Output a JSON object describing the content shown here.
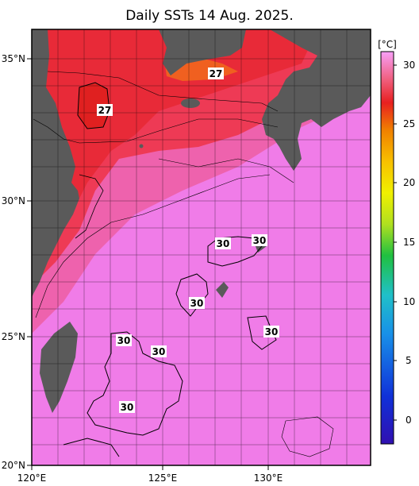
{
  "title": "Daily SSTs 14 Aug. 2025.",
  "lat_labels": [
    "35°N",
    "30°N",
    "25°N",
    "20°N"
  ],
  "lon_labels": [
    "120°E",
    "125°E",
    "130°E"
  ],
  "colorbar": {
    "unit": "[°C]",
    "ticks": [
      "30",
      "25",
      "20",
      "15",
      "10",
      "5",
      "0"
    ],
    "range": [
      -2,
      31
    ]
  },
  "contour_labels": [
    "27",
    "27",
    "30",
    "30",
    "30",
    "30",
    "30",
    "30",
    "30"
  ],
  "colors": {
    "land": "#5a5a5a",
    "warm_sea": "#f07ce8",
    "hot_sea": "#ee2c30",
    "background": "#ffffff"
  }
}
